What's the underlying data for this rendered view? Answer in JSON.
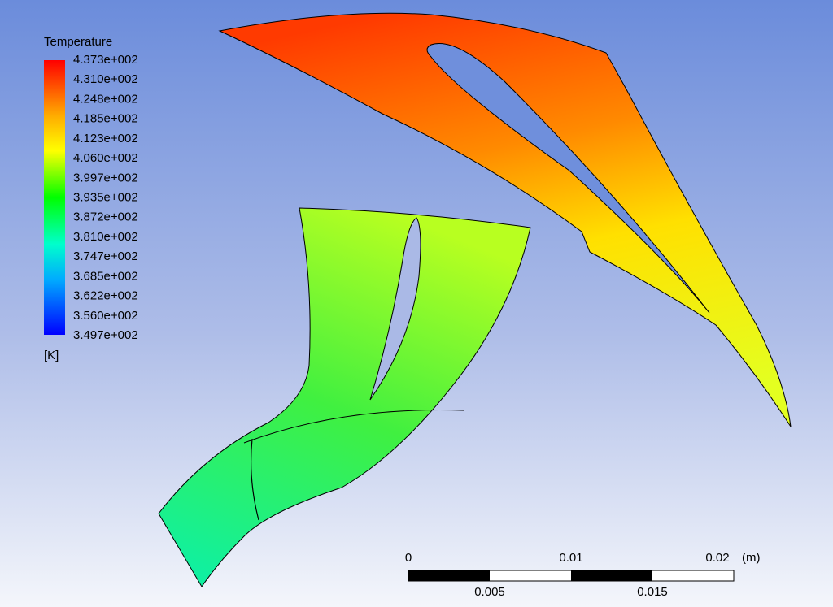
{
  "legend": {
    "title": "Temperature",
    "labels": [
      "4.373e+002",
      "4.310e+002",
      "4.248e+002",
      "4.185e+002",
      "4.123e+002",
      "4.060e+002",
      "3.997e+002",
      "3.935e+002",
      "3.872e+002",
      "3.810e+002",
      "3.747e+002",
      "3.685e+002",
      "3.622e+002",
      "3.560e+002",
      "3.497e+002"
    ],
    "unit": "[K]"
  },
  "scale_bar": {
    "top_labels": [
      "0",
      "0.01",
      "0.02"
    ],
    "unit": "(m)",
    "bottom_labels": [
      "0.005",
      "0.015"
    ]
  }
}
